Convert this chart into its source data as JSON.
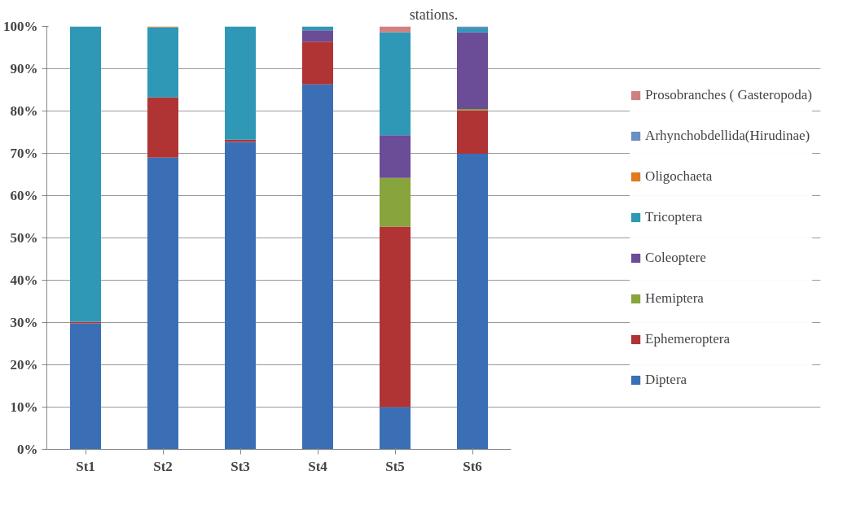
{
  "chart_data": {
    "type": "bar",
    "title": "stations.",
    "stacked": true,
    "categories": [
      "St1",
      "St2",
      "St3",
      "St4",
      "St5",
      "St6"
    ],
    "series": [
      {
        "name": "Diptera",
        "color": "#3a6fb5",
        "values": [
          29.8,
          69.0,
          72.7,
          86.3,
          10.0,
          69.9
        ]
      },
      {
        "name": "Ephemeroptera",
        "color": "#b03434",
        "values": [
          0.4,
          14.2,
          0.5,
          10.1,
          42.7,
          10.3
        ]
      },
      {
        "name": "Hemiptera",
        "color": "#88a43c",
        "values": [
          0,
          0,
          0,
          0,
          11.5,
          0.3
        ]
      },
      {
        "name": "Coleoptere",
        "color": "#6b4c96",
        "values": [
          0,
          0,
          0,
          2.7,
          10.1,
          18.1
        ]
      },
      {
        "name": "Tricoptera",
        "color": "#2f98b6",
        "values": [
          69.8,
          16.6,
          26.8,
          0.9,
          24.3,
          0.9
        ]
      },
      {
        "name": "Oligochaeta",
        "color": "#e07b20",
        "values": [
          0,
          0.2,
          0,
          0,
          0,
          0
        ]
      },
      {
        "name": "Arhynchobdellida(Hirudinae)",
        "color": "#6a8fc2",
        "values": [
          0,
          0,
          0,
          0,
          0,
          0.5
        ]
      },
      {
        "name": "Prosobranches ( Gasteropoda)",
        "color": "#d08080",
        "values": [
          0,
          0,
          0,
          0,
          1.4,
          0
        ]
      }
    ],
    "ylim": [
      0,
      100
    ],
    "yticks": [
      {
        "value": 0,
        "label": "0%"
      },
      {
        "value": 10,
        "label": "10%"
      },
      {
        "value": 20,
        "label": "20%"
      },
      {
        "value": 30,
        "label": "30%"
      },
      {
        "value": 40,
        "label": "40%"
      },
      {
        "value": 50,
        "label": "50%"
      },
      {
        "value": 60,
        "label": "60%"
      },
      {
        "value": 70,
        "label": "70%"
      },
      {
        "value": 80,
        "label": "80%"
      },
      {
        "value": 90,
        "label": "90%"
      },
      {
        "value": 100,
        "label": "100%"
      }
    ],
    "grid": "y",
    "legend": "right"
  }
}
